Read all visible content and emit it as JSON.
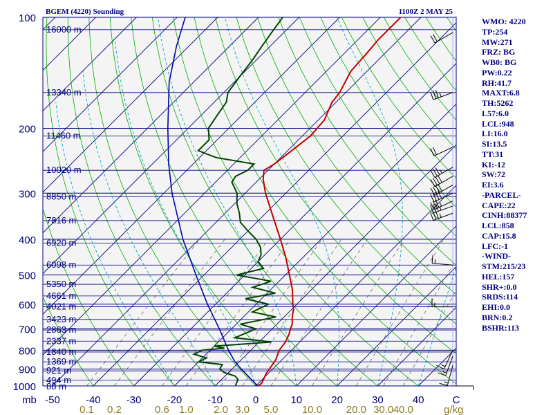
{
  "header": {
    "station": "BGEM (4220) Sounding",
    "time": "1100Z  2 MAY 25"
  },
  "colors": {
    "background": "#f4f4f4",
    "isobar": "#000080",
    "isotherm": "#000080",
    "dry_adiabat": "#00aa00",
    "moist_adiabat": "#00a6c8",
    "mixing_ratio": "#555555",
    "temperature": "#c00000",
    "dewpoint": "#004400",
    "parcel": "#0000aa",
    "wind": "#000000"
  },
  "chart_data": {
    "type": "skew-t",
    "y_scale": "log-pressure",
    "ylim": [
      1000,
      100
    ],
    "xlim": [
      -50,
      50
    ],
    "pressure_levels": [
      100,
      200,
      300,
      400,
      500,
      600,
      700,
      800,
      900,
      1000
    ],
    "height_labels": [
      {
        "p": 108,
        "label": "16000 m"
      },
      {
        "p": 160,
        "label": "13340 m"
      },
      {
        "p": 210,
        "label": "11460 m"
      },
      {
        "p": 260,
        "label": "10020 m"
      },
      {
        "p": 307,
        "label": "8850 m"
      },
      {
        "p": 356,
        "label": "7816 m"
      },
      {
        "p": 410,
        "label": "6920 m"
      },
      {
        "p": 470,
        "label": "6098 m"
      },
      {
        "p": 530,
        "label": "5350 m"
      },
      {
        "p": 570,
        "label": "4661 m"
      },
      {
        "p": 610,
        "label": "4021 m"
      },
      {
        "p": 660,
        "label": "3423 m"
      },
      {
        "p": 705,
        "label": "2863 m"
      },
      {
        "p": 756,
        "label": "2337 m"
      },
      {
        "p": 809,
        "label": "1840 m"
      },
      {
        "p": 860,
        "label": "1369 m"
      },
      {
        "p": 910,
        "label": "921 m"
      },
      {
        "p": 965,
        "label": "494 m"
      },
      {
        "p": 1005,
        "label": "88 m"
      }
    ],
    "temp_tick_labels": [
      -50,
      -40,
      -30,
      -20,
      -10,
      0,
      10,
      20,
      30,
      40
    ],
    "mixing_ratio_labels": [
      "0.1",
      "0.2",
      "0.6",
      "1.0",
      "2.0",
      "3.0",
      "5.0",
      "10.0",
      "20.0",
      "30.0",
      "40.0"
    ],
    "x_unit_label": "g/kg",
    "y_unit_label": "mb",
    "legend": "none",
    "grid": true,
    "temperature_profile": [
      {
        "p": 1000,
        "t": 0.5
      },
      {
        "p": 985,
        "t": 0.8
      },
      {
        "p": 960,
        "t": 0.3
      },
      {
        "p": 925,
        "t": -0.5
      },
      {
        "p": 900,
        "t": -0.8
      },
      {
        "p": 850,
        "t": -1.5
      },
      {
        "p": 800,
        "t": -3.0
      },
      {
        "p": 760,
        "t": -3.5
      },
      {
        "p": 725,
        "t": -4.5
      },
      {
        "p": 700,
        "t": -5.5
      },
      {
        "p": 680,
        "t": -6.2
      },
      {
        "p": 650,
        "t": -8.0
      },
      {
        "p": 620,
        "t": -9.5
      },
      {
        "p": 600,
        "t": -11.0
      },
      {
        "p": 550,
        "t": -14.5
      },
      {
        "p": 500,
        "t": -19.0
      },
      {
        "p": 450,
        "t": -24.0
      },
      {
        "p": 400,
        "t": -30.0
      },
      {
        "p": 350,
        "t": -37.0
      },
      {
        "p": 300,
        "t": -45.0
      },
      {
        "p": 275,
        "t": -49.0
      },
      {
        "p": 260,
        "t": -51.0
      },
      {
        "p": 250,
        "t": -50.0
      },
      {
        "p": 230,
        "t": -49.0
      },
      {
        "p": 210,
        "t": -48.0
      },
      {
        "p": 190,
        "t": -48.5
      },
      {
        "p": 170,
        "t": -51.0
      },
      {
        "p": 160,
        "t": -51.5
      },
      {
        "p": 140,
        "t": -54.0
      },
      {
        "p": 125,
        "t": -54.5
      },
      {
        "p": 115,
        "t": -55.0
      },
      {
        "p": 100,
        "t": -55.0
      }
    ],
    "dewpoint_profile": [
      {
        "p": 1000,
        "td": -5.0
      },
      {
        "p": 960,
        "td": -6.0
      },
      {
        "p": 940,
        "td": -7.5
      },
      {
        "p": 920,
        "td": -11.0
      },
      {
        "p": 900,
        "td": -13.0
      },
      {
        "p": 875,
        "td": -13.5
      },
      {
        "p": 860,
        "td": -20.0
      },
      {
        "p": 840,
        "td": -19.0
      },
      {
        "p": 820,
        "td": -23.0
      },
      {
        "p": 800,
        "td": -22.0
      },
      {
        "p": 790,
        "td": -17.0
      },
      {
        "p": 780,
        "td": -20.0
      },
      {
        "p": 760,
        "td": -7.0
      },
      {
        "p": 740,
        "td": -17.0
      },
      {
        "p": 700,
        "td": -14.0
      },
      {
        "p": 680,
        "td": -19.0
      },
      {
        "p": 650,
        "td": -12.0
      },
      {
        "p": 630,
        "td": -19.0
      },
      {
        "p": 600,
        "td": -17.0
      },
      {
        "p": 580,
        "td": -24.0
      },
      {
        "p": 560,
        "td": -18.0
      },
      {
        "p": 540,
        "td": -25.0
      },
      {
        "p": 520,
        "td": -22.0
      },
      {
        "p": 500,
        "td": -32.0
      },
      {
        "p": 480,
        "td": -27.0
      },
      {
        "p": 460,
        "td": -30.0
      },
      {
        "p": 440,
        "td": -31.0
      },
      {
        "p": 420,
        "td": -33.0
      },
      {
        "p": 400,
        "td": -36.0
      },
      {
        "p": 380,
        "td": -40.0
      },
      {
        "p": 360,
        "td": -44.0
      },
      {
        "p": 340,
        "td": -46.5
      },
      {
        "p": 320,
        "td": -49.5
      },
      {
        "p": 300,
        "td": -52.0
      },
      {
        "p": 280,
        "td": -56.0
      },
      {
        "p": 270,
        "td": -56.5
      },
      {
        "p": 260,
        "td": -55.0
      },
      {
        "p": 250,
        "td": -55.0
      },
      {
        "p": 240,
        "td": -66.0
      },
      {
        "p": 230,
        "td": -72.0
      },
      {
        "p": 215,
        "td": -72.0
      },
      {
        "p": 200,
        "td": -75.0
      },
      {
        "p": 185,
        "td": -76.0
      },
      {
        "p": 170,
        "td": -77.0
      },
      {
        "p": 160,
        "td": -79.0
      },
      {
        "p": 145,
        "td": -80.0
      },
      {
        "p": 130,
        "td": -81.0
      },
      {
        "p": 120,
        "td": -82.0
      },
      {
        "p": 110,
        "td": -83.0
      },
      {
        "p": 100,
        "td": -84.0
      }
    ],
    "parcel_profile": [
      {
        "p": 1000,
        "t": 0.5
      },
      {
        "p": 950,
        "t": -3.5
      },
      {
        "p": 900,
        "t": -7.7
      },
      {
        "p": 858,
        "t": -11.2
      },
      {
        "p": 800,
        "t": -15.5
      },
      {
        "p": 700,
        "t": -23.0
      },
      {
        "p": 600,
        "t": -32.0
      },
      {
        "p": 500,
        "t": -42.0
      },
      {
        "p": 400,
        "t": -54.0
      },
      {
        "p": 300,
        "t": -68.0
      },
      {
        "p": 250,
        "t": -76.0
      },
      {
        "p": 200,
        "t": -85.0
      },
      {
        "p": 150,
        "t": -96.0
      },
      {
        "p": 120,
        "t": -103.0
      },
      {
        "p": 100,
        "t": -108.0
      }
    ],
    "wind_barbs": [
      {
        "p": 1000,
        "dir": 90,
        "spd": 5
      },
      {
        "p": 880,
        "dir": 195,
        "spd": 15
      },
      {
        "p": 830,
        "dir": 200,
        "spd": 15
      },
      {
        "p": 800,
        "dir": 205,
        "spd": 15
      },
      {
        "p": 610,
        "dir": 270,
        "spd": 15
      },
      {
        "p": 470,
        "dir": 275,
        "spd": 15
      },
      {
        "p": 340,
        "dir": 250,
        "spd": 35
      },
      {
        "p": 325,
        "dir": 250,
        "spd": 35
      },
      {
        "p": 315,
        "dir": 245,
        "spd": 35
      },
      {
        "p": 300,
        "dir": 245,
        "spd": 40
      },
      {
        "p": 285,
        "dir": 240,
        "spd": 40
      },
      {
        "p": 270,
        "dir": 240,
        "spd": 40
      },
      {
        "p": 255,
        "dir": 240,
        "spd": 35
      },
      {
        "p": 225,
        "dir": 245,
        "spd": 20
      },
      {
        "p": 160,
        "dir": 250,
        "spd": 35
      },
      {
        "p": 110,
        "dir": 240,
        "spd": 20
      }
    ]
  },
  "indices": [
    "WMO: 4220",
    "TP:254",
    "MW:271",
    "FRZ: BG",
    "WB0: BG",
    "PW:0.22",
    "RH:41.7",
    "MAXT:6.8",
    "TH:5262",
    "L57:6.0",
    "LCL:948",
    "LI:16.0",
    "SI:13.5",
    "TT:31",
    "KI:-12",
    "SW:72",
    "EI:3.6",
    "-PARCEL-",
    "CAPE:22",
    "CINH:88377",
    "LCL:858",
    "CAP:15.8",
    "LFC:-1",
    "-WIND-",
    "STM:215/23",
    "HEL:157",
    "SHR+:0.0",
    "SRDS:114",
    "EHI:0.0",
    "BRN:0.2",
    "BSHR:113"
  ]
}
